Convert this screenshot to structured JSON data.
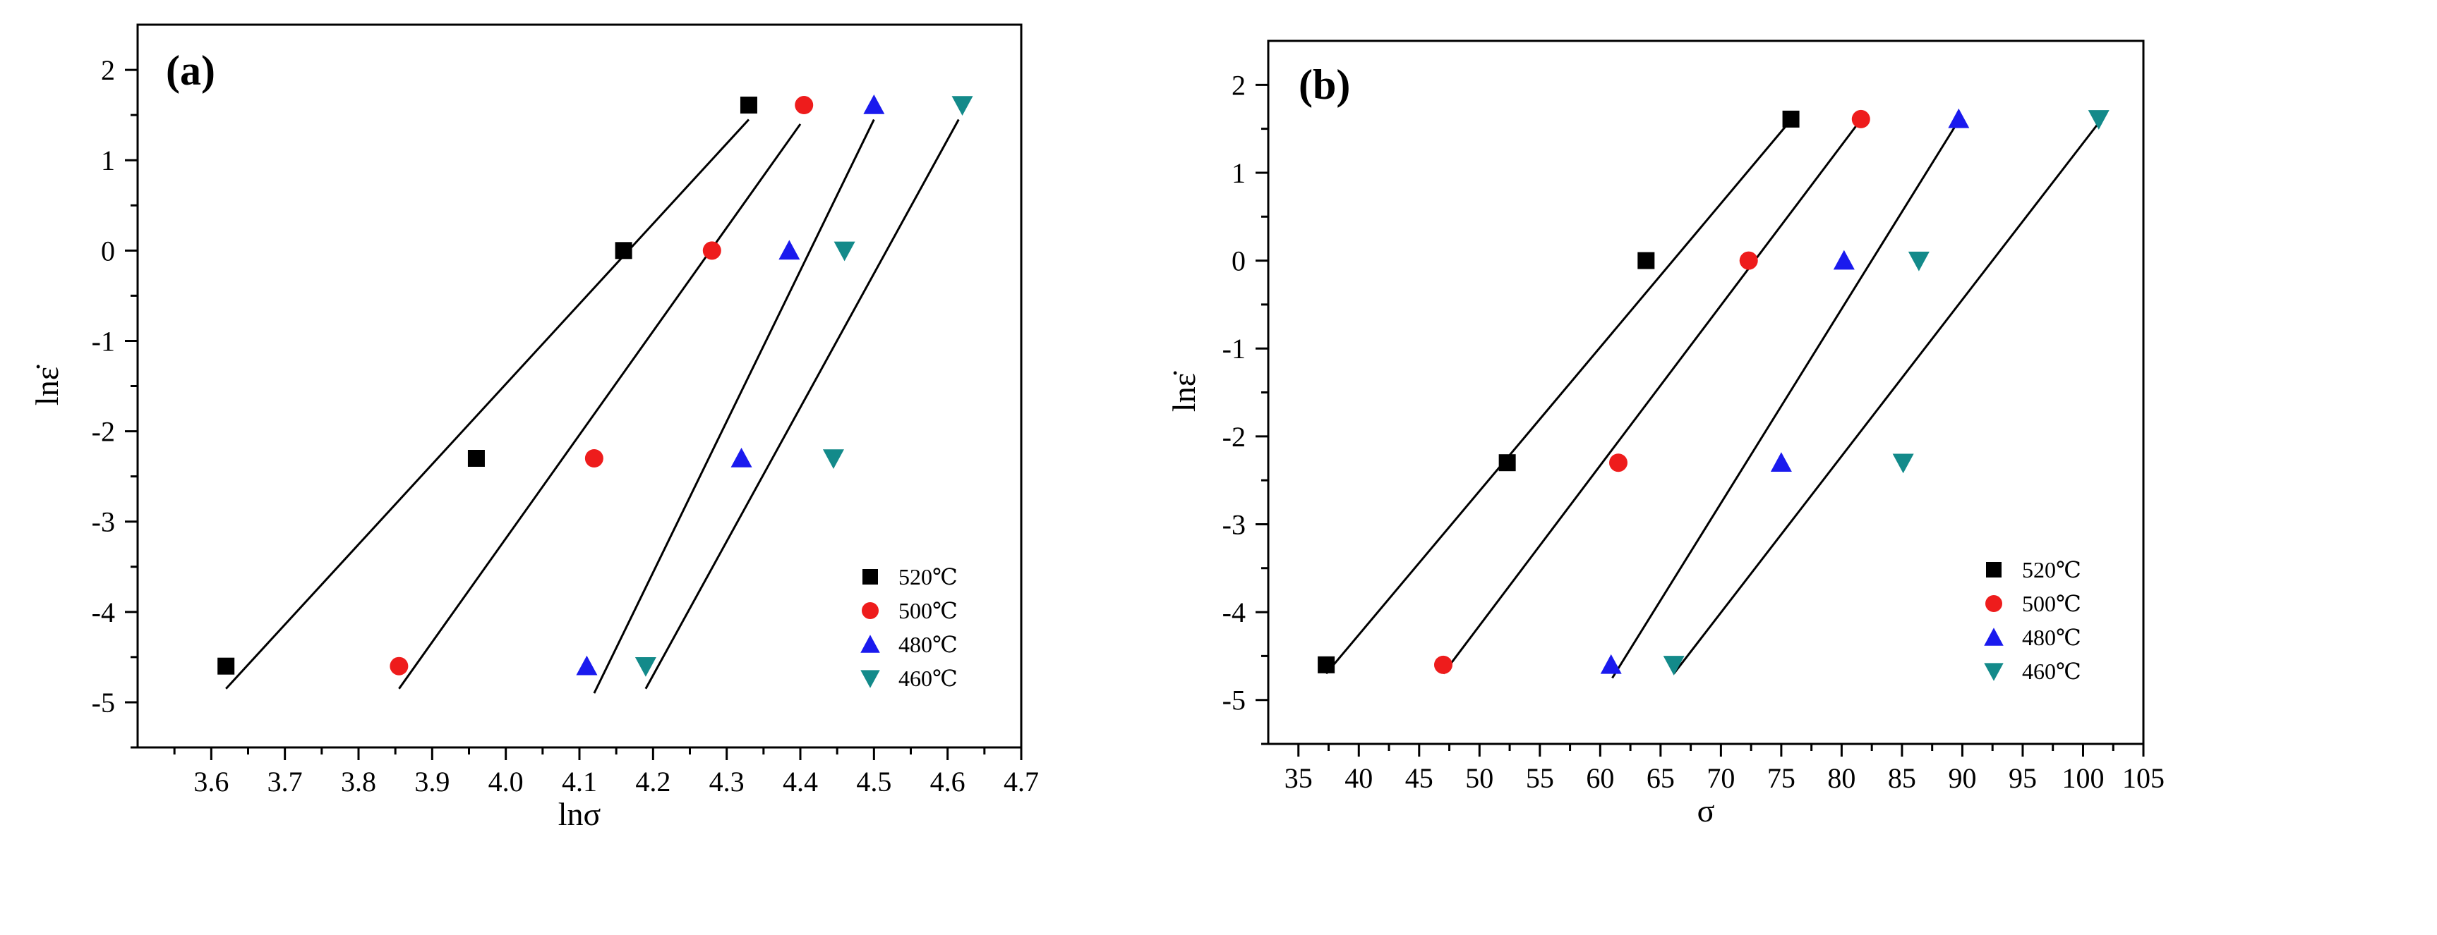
{
  "chart_data": [
    {
      "type": "scatter",
      "panel_label": "(a)",
      "xlabel": "lnσ",
      "ylabel": "lnε̇",
      "xlim": [
        3.5,
        4.7
      ],
      "ylim": [
        -5.5,
        2.5
      ],
      "xticks": [
        3.6,
        3.7,
        3.8,
        3.9,
        4.0,
        4.1,
        4.2,
        4.3,
        4.4,
        4.5,
        4.6,
        4.7
      ],
      "xtick_labels": [
        "3.6",
        "3.7",
        "3.8",
        "3.9",
        "4.0",
        "4.1",
        "4.2",
        "4.3",
        "4.4",
        "4.5",
        "4.6",
        "4.7"
      ],
      "yticks": [
        -5,
        -4,
        -3,
        -2,
        -1,
        0,
        1,
        2
      ],
      "ytick_labels": [
        "-5",
        "-4",
        "-3",
        "-2",
        "-1",
        "0",
        "1",
        "2"
      ],
      "legend_position": "bottom-right",
      "series": [
        {
          "name": "520℃",
          "marker": "square",
          "color": "#000000",
          "points": [
            [
              3.62,
              -4.6
            ],
            [
              3.96,
              -2.3
            ],
            [
              4.16,
              0.0
            ],
            [
              4.33,
              1.61
            ]
          ],
          "fit": [
            [
              3.62,
              -4.85
            ],
            [
              4.33,
              1.45
            ]
          ]
        },
        {
          "name": "500℃",
          "marker": "circle",
          "color": "#ee1c1c",
          "points": [
            [
              3.855,
              -4.6
            ],
            [
              4.12,
              -2.3
            ],
            [
              4.28,
              0.0
            ],
            [
              4.405,
              1.61
            ]
          ],
          "fit": [
            [
              3.855,
              -4.85
            ],
            [
              4.4,
              1.4
            ]
          ]
        },
        {
          "name": "480℃",
          "marker": "triangle-up",
          "color": "#1a1aee",
          "points": [
            [
              4.11,
              -4.6
            ],
            [
              4.32,
              -2.3
            ],
            [
              4.385,
              0.0
            ],
            [
              4.5,
              1.61
            ]
          ],
          "fit": [
            [
              4.12,
              -4.9
            ],
            [
              4.5,
              1.45
            ]
          ]
        },
        {
          "name": "460℃",
          "marker": "triangle-down",
          "color": "#138a8a",
          "points": [
            [
              4.19,
              -4.6
            ],
            [
              4.445,
              -2.3
            ],
            [
              4.46,
              0.0
            ],
            [
              4.62,
              1.61
            ]
          ],
          "fit": [
            [
              4.19,
              -4.85
            ],
            [
              4.615,
              1.45
            ]
          ]
        }
      ]
    },
    {
      "type": "scatter",
      "panel_label": "(b)",
      "xlabel": "σ",
      "ylabel": "lnε̇",
      "xlim": [
        32.5,
        105
      ],
      "ylim": [
        -5.5,
        2.5
      ],
      "xticks": [
        35,
        40,
        45,
        50,
        55,
        60,
        65,
        70,
        75,
        80,
        85,
        90,
        95,
        100,
        105
      ],
      "xtick_labels": [
        "35",
        "40",
        "45",
        "50",
        "55",
        "60",
        "65",
        "70",
        "75",
        "80",
        "85",
        "90",
        "95",
        "100",
        "105"
      ],
      "yticks": [
        -5,
        -4,
        -3,
        -2,
        -1,
        0,
        1,
        2
      ],
      "ytick_labels": [
        "-5",
        "-4",
        "-3",
        "-2",
        "-1",
        "0",
        "1",
        "2"
      ],
      "legend_position": "bottom-right",
      "series": [
        {
          "name": "520℃",
          "marker": "square",
          "color": "#000000",
          "points": [
            [
              37.3,
              -4.6
            ],
            [
              52.3,
              -2.3
            ],
            [
              63.8,
              0.0
            ],
            [
              75.8,
              1.61
            ]
          ],
          "fit": [
            [
              37.3,
              -4.7
            ],
            [
              75.5,
              1.55
            ]
          ]
        },
        {
          "name": "500℃",
          "marker": "circle",
          "color": "#ee1c1c",
          "points": [
            [
              47.0,
              -4.6
            ],
            [
              61.5,
              -2.3
            ],
            [
              72.3,
              0.0
            ],
            [
              81.6,
              1.61
            ]
          ],
          "fit": [
            [
              47.0,
              -4.7
            ],
            [
              81.3,
              1.55
            ]
          ]
        },
        {
          "name": "480℃",
          "marker": "triangle-up",
          "color": "#1a1aee",
          "points": [
            [
              60.9,
              -4.6
            ],
            [
              75.0,
              -2.3
            ],
            [
              80.2,
              0.0
            ],
            [
              89.7,
              1.61
            ]
          ],
          "fit": [
            [
              61.0,
              -4.75
            ],
            [
              89.5,
              1.55
            ]
          ]
        },
        {
          "name": "460℃",
          "marker": "triangle-down",
          "color": "#138a8a",
          "points": [
            [
              66.1,
              -4.6
            ],
            [
              85.1,
              -2.3
            ],
            [
              86.4,
              0.0
            ],
            [
              101.3,
              1.61
            ]
          ],
          "fit": [
            [
              66.1,
              -4.7
            ],
            [
              101.2,
              1.55
            ]
          ]
        }
      ]
    }
  ]
}
